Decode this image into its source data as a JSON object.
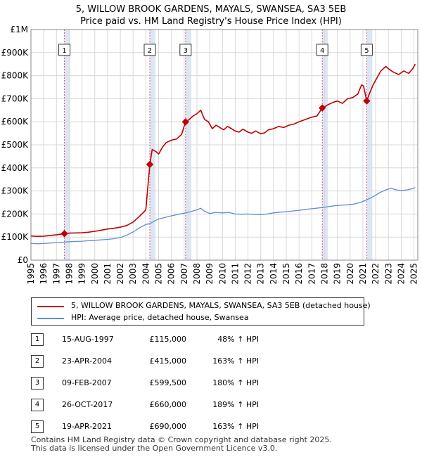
{
  "chart_data": {
    "type": "line",
    "title": "5, WILLOW BROOK GARDENS, MAYALS, SWANSEA, SA3 5EB",
    "subtitle": "Price paid vs. HM Land Registry's House Price Index (HPI)",
    "xlim": [
      1995,
      2025.3
    ],
    "ylim": [
      0,
      1000000
    ],
    "y_ticks": [
      0,
      100000,
      200000,
      300000,
      400000,
      500000,
      600000,
      700000,
      800000,
      900000,
      1000000
    ],
    "y_tick_labels": [
      "£0",
      "£100K",
      "£200K",
      "£300K",
      "£400K",
      "£500K",
      "£600K",
      "£700K",
      "£800K",
      "£900K",
      "£1M"
    ],
    "x_ticks": [
      "1995",
      "1996",
      "1997",
      "1998",
      "1999",
      "2000",
      "2001",
      "2002",
      "2003",
      "2004",
      "2005",
      "2006",
      "2007",
      "2008",
      "2009",
      "2010",
      "2011",
      "2012",
      "2013",
      "2014",
      "2015",
      "2016",
      "2017",
      "2018",
      "2019",
      "2020",
      "2021",
      "2022",
      "2023",
      "2024",
      "2025"
    ],
    "grid": true,
    "colors": {
      "property": "#c00000",
      "hpi": "#5b8fcc",
      "shade": "#dde6f3",
      "marker_line": "#d06080"
    },
    "series": [
      {
        "name": "5, WILLOW BROOK GARDENS, MAYALS, SWANSEA, SA3 5EB (detached house)",
        "color": "#c00000",
        "points": [
          [
            1995.0,
            105000
          ],
          [
            1995.5,
            103000
          ],
          [
            1996.0,
            104000
          ],
          [
            1996.5,
            107000
          ],
          [
            1997.0,
            110000
          ],
          [
            1997.62,
            115000
          ],
          [
            1998.0,
            117000
          ],
          [
            1998.5,
            118000
          ],
          [
            1999.0,
            119000
          ],
          [
            1999.5,
            121000
          ],
          [
            2000.0,
            125000
          ],
          [
            2000.5,
            130000
          ],
          [
            2001.0,
            135000
          ],
          [
            2001.5,
            138000
          ],
          [
            2002.0,
            143000
          ],
          [
            2002.5,
            150000
          ],
          [
            2003.0,
            165000
          ],
          [
            2003.5,
            190000
          ],
          [
            2003.95,
            215000
          ],
          [
            2004.0,
            220000
          ],
          [
            2004.31,
            415000
          ],
          [
            2004.5,
            480000
          ],
          [
            2004.8,
            470000
          ],
          [
            2005.0,
            460000
          ],
          [
            2005.3,
            490000
          ],
          [
            2005.6,
            510000
          ],
          [
            2006.0,
            520000
          ],
          [
            2006.4,
            525000
          ],
          [
            2006.8,
            545000
          ],
          [
            2007.11,
            599500
          ],
          [
            2007.4,
            610000
          ],
          [
            2007.7,
            625000
          ],
          [
            2008.0,
            635000
          ],
          [
            2008.3,
            650000
          ],
          [
            2008.6,
            610000
          ],
          [
            2008.9,
            600000
          ],
          [
            2009.2,
            570000
          ],
          [
            2009.5,
            585000
          ],
          [
            2009.8,
            575000
          ],
          [
            2010.1,
            565000
          ],
          [
            2010.4,
            580000
          ],
          [
            2010.7,
            570000
          ],
          [
            2011.0,
            560000
          ],
          [
            2011.3,
            555000
          ],
          [
            2011.6,
            568000
          ],
          [
            2012.0,
            555000
          ],
          [
            2012.3,
            550000
          ],
          [
            2012.6,
            560000
          ],
          [
            2013.0,
            548000
          ],
          [
            2013.3,
            552000
          ],
          [
            2013.6,
            565000
          ],
          [
            2014.0,
            570000
          ],
          [
            2014.4,
            580000
          ],
          [
            2014.8,
            575000
          ],
          [
            2015.2,
            585000
          ],
          [
            2015.6,
            590000
          ],
          [
            2016.0,
            600000
          ],
          [
            2016.5,
            610000
          ],
          [
            2017.0,
            620000
          ],
          [
            2017.4,
            625000
          ],
          [
            2017.82,
            660000
          ],
          [
            2018.0,
            665000
          ],
          [
            2018.3,
            675000
          ],
          [
            2018.7,
            685000
          ],
          [
            2019.0,
            690000
          ],
          [
            2019.4,
            680000
          ],
          [
            2019.8,
            700000
          ],
          [
            2020.2,
            705000
          ],
          [
            2020.6,
            720000
          ],
          [
            2020.9,
            760000
          ],
          [
            2021.05,
            755000
          ],
          [
            2021.3,
            690000
          ],
          [
            2021.5,
            720000
          ],
          [
            2021.8,
            760000
          ],
          [
            2022.0,
            780000
          ],
          [
            2022.4,
            820000
          ],
          [
            2022.8,
            840000
          ],
          [
            2023.0,
            830000
          ],
          [
            2023.4,
            815000
          ],
          [
            2023.8,
            805000
          ],
          [
            2024.2,
            820000
          ],
          [
            2024.6,
            810000
          ],
          [
            2024.9,
            830000
          ],
          [
            2025.1,
            850000
          ]
        ]
      },
      {
        "name": "HPI: Average price, detached house, Swansea",
        "color": "#5b8fcc",
        "points": [
          [
            1995.0,
            72000
          ],
          [
            1995.5,
            71000
          ],
          [
            1996.0,
            72000
          ],
          [
            1996.5,
            74000
          ],
          [
            1997.0,
            76000
          ],
          [
            1997.62,
            78000
          ],
          [
            1998.0,
            80000
          ],
          [
            1998.5,
            81000
          ],
          [
            1999.0,
            82000
          ],
          [
            1999.5,
            84000
          ],
          [
            2000.0,
            86000
          ],
          [
            2000.5,
            88000
          ],
          [
            2001.0,
            90000
          ],
          [
            2001.5,
            93000
          ],
          [
            2002.0,
            98000
          ],
          [
            2002.5,
            108000
          ],
          [
            2003.0,
            122000
          ],
          [
            2003.5,
            140000
          ],
          [
            2004.0,
            155000
          ],
          [
            2004.31,
            158000
          ],
          [
            2004.7,
            170000
          ],
          [
            2005.0,
            178000
          ],
          [
            2005.5,
            185000
          ],
          [
            2006.0,
            192000
          ],
          [
            2006.5,
            198000
          ],
          [
            2007.11,
            205000
          ],
          [
            2007.5,
            210000
          ],
          [
            2008.0,
            218000
          ],
          [
            2008.3,
            225000
          ],
          [
            2008.6,
            212000
          ],
          [
            2009.0,
            202000
          ],
          [
            2009.5,
            207000
          ],
          [
            2010.0,
            205000
          ],
          [
            2010.5,
            207000
          ],
          [
            2011.0,
            200000
          ],
          [
            2011.5,
            199000
          ],
          [
            2012.0,
            200000
          ],
          [
            2012.5,
            198000
          ],
          [
            2013.0,
            197000
          ],
          [
            2013.5,
            200000
          ],
          [
            2014.0,
            205000
          ],
          [
            2014.5,
            208000
          ],
          [
            2015.0,
            210000
          ],
          [
            2015.5,
            213000
          ],
          [
            2016.0,
            216000
          ],
          [
            2016.5,
            220000
          ],
          [
            2017.0,
            223000
          ],
          [
            2017.82,
            228000
          ],
          [
            2018.3,
            232000
          ],
          [
            2018.8,
            236000
          ],
          [
            2019.3,
            238000
          ],
          [
            2019.8,
            240000
          ],
          [
            2020.3,
            243000
          ],
          [
            2020.8,
            250000
          ],
          [
            2021.3,
            262000
          ],
          [
            2021.8,
            275000
          ],
          [
            2022.3,
            292000
          ],
          [
            2022.8,
            305000
          ],
          [
            2023.2,
            312000
          ],
          [
            2023.6,
            305000
          ],
          [
            2024.0,
            302000
          ],
          [
            2024.5,
            305000
          ],
          [
            2024.9,
            310000
          ],
          [
            2025.1,
            315000
          ]
        ]
      }
    ],
    "sales": [
      {
        "label": "1",
        "year": 1997.62,
        "price": 115000
      },
      {
        "label": "2",
        "year": 2004.31,
        "price": 415000
      },
      {
        "label": "3",
        "year": 2007.11,
        "price": 599500
      },
      {
        "label": "4",
        "year": 2017.82,
        "price": 660000
      },
      {
        "label": "5",
        "year": 2021.3,
        "price": 690000
      }
    ]
  },
  "legend": {
    "property": "5, WILLOW BROOK GARDENS, MAYALS, SWANSEA, SA3 5EB (detached house)",
    "hpi": "HPI: Average price, detached house, Swansea"
  },
  "transactions": [
    {
      "num": "1",
      "date": "15-AUG-1997",
      "price": "£115,000",
      "hpi": "48% ↑ HPI"
    },
    {
      "num": "2",
      "date": "23-APR-2004",
      "price": "£415,000",
      "hpi": "163% ↑ HPI"
    },
    {
      "num": "3",
      "date": "09-FEB-2007",
      "price": "£599,500",
      "hpi": "180% ↑ HPI"
    },
    {
      "num": "4",
      "date": "26-OCT-2017",
      "price": "£660,000",
      "hpi": "189% ↑ HPI"
    },
    {
      "num": "5",
      "date": "19-APR-2021",
      "price": "£690,000",
      "hpi": "163% ↑ HPI"
    }
  ],
  "footer": {
    "line1": "Contains HM Land Registry data © Crown copyright and database right 2025.",
    "line2": "This data is licensed under the Open Government Licence v3.0."
  }
}
